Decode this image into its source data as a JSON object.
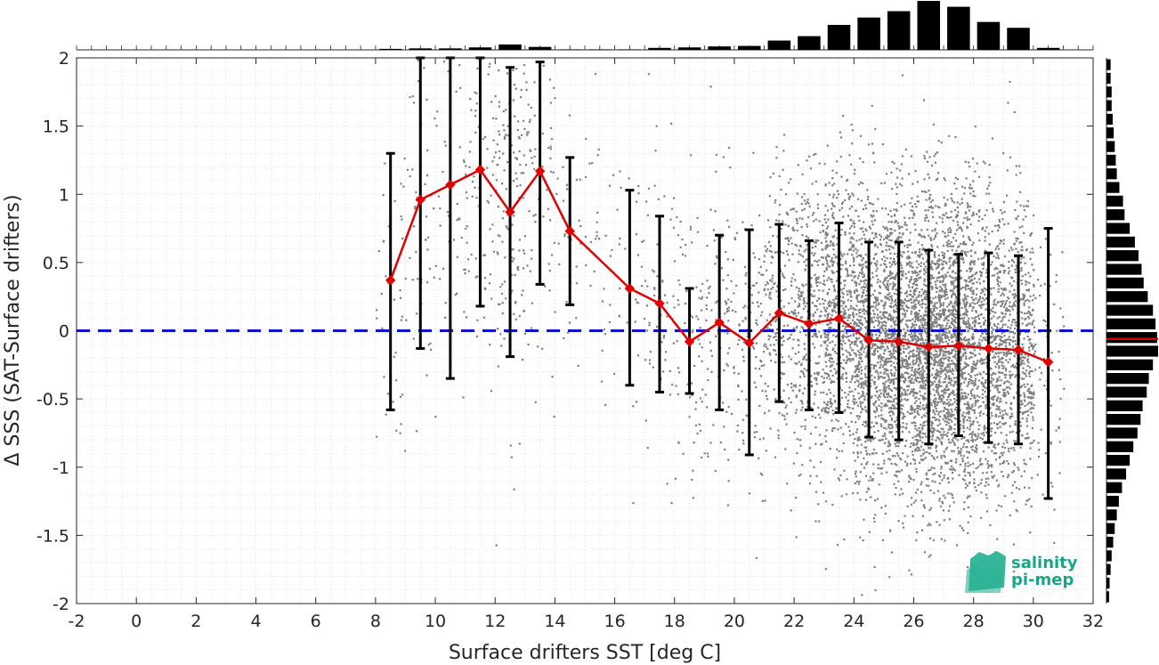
{
  "chart_data": {
    "type": "scatter",
    "xlabel": "Surface drifters SST [deg C]",
    "ylabel": "Δ SSS (SAT-Surface drifters)",
    "xlim": [
      -2,
      32
    ],
    "ylim": [
      -2,
      2
    ],
    "x_ticks": [
      "-2",
      "0",
      "2",
      "4",
      "6",
      "8",
      "10",
      "12",
      "14",
      "16",
      "18",
      "20",
      "22",
      "24",
      "26",
      "28",
      "30",
      "32"
    ],
    "y_ticks": [
      "2",
      "1.5",
      "1",
      "0.5",
      "0",
      "-0.5",
      "-1",
      "-1.5",
      "-2"
    ],
    "grid": true,
    "reference_line": {
      "y": 0,
      "style": "dashed",
      "color": "#1010d0"
    },
    "binned_mean": {
      "color": "#e00000",
      "x": [
        8.5,
        9.5,
        10.5,
        11.5,
        12.5,
        13.5,
        14.5,
        16.5,
        17.5,
        18.5,
        19.5,
        20.5,
        21.5,
        22.5,
        23.5,
        24.5,
        25.5,
        26.5,
        27.5,
        28.5,
        29.5,
        30.5
      ],
      "y": [
        0.37,
        0.96,
        1.07,
        1.18,
        0.87,
        1.17,
        0.73,
        0.31,
        0.2,
        -0.08,
        0.06,
        -0.09,
        0.13,
        0.05,
        0.09,
        -0.07,
        -0.08,
        -0.12,
        -0.11,
        -0.13,
        -0.14,
        -0.23
      ],
      "err_low": [
        -0.58,
        -0.13,
        -0.35,
        0.18,
        -0.19,
        0.34,
        0.19,
        -0.4,
        -0.45,
        -0.46,
        -0.58,
        -0.91,
        -0.52,
        -0.58,
        -0.6,
        -0.78,
        -0.8,
        -0.83,
        -0.77,
        -0.82,
        -0.83,
        -1.23
      ],
      "err_high": [
        1.3,
        2.0,
        2.0,
        2.0,
        1.93,
        1.97,
        1.27,
        1.03,
        0.84,
        0.31,
        0.7,
        0.74,
        0.78,
        0.66,
        0.79,
        0.65,
        0.65,
        0.59,
        0.56,
        0.57,
        0.55,
        0.75
      ]
    },
    "scatter_color": "#808080",
    "top_histogram": {
      "x": [
        8.5,
        9.5,
        10.5,
        11.5,
        12.5,
        13.5,
        14.5,
        15.5,
        16.5,
        17.5,
        18.5,
        19.5,
        20.5,
        21.5,
        22.5,
        23.5,
        24.5,
        25.5,
        26.5,
        27.5,
        28.5,
        29.5,
        30.5
      ],
      "counts": [
        0.02,
        0.03,
        0.03,
        0.05,
        0.11,
        0.06,
        0.01,
        0.01,
        0.01,
        0.04,
        0.05,
        0.07,
        0.08,
        0.19,
        0.28,
        0.51,
        0.66,
        0.79,
        1.0,
        0.88,
        0.57,
        0.45,
        0.04
      ]
    },
    "right_histogram": {
      "y": [
        1.95,
        1.85,
        1.75,
        1.65,
        1.55,
        1.45,
        1.35,
        1.25,
        1.15,
        1.05,
        0.95,
        0.85,
        0.75,
        0.65,
        0.55,
        0.45,
        0.35,
        0.25,
        0.15,
        0.05,
        -0.05,
        -0.15,
        -0.25,
        -0.35,
        -0.45,
        -0.55,
        -0.65,
        -0.75,
        -0.85,
        -0.95,
        -1.05,
        -1.15,
        -1.25,
        -1.35,
        -1.45,
        -1.55,
        -1.65,
        -1.75,
        -1.85,
        -1.95
      ],
      "counts": [
        0.08,
        0.08,
        0.1,
        0.1,
        0.12,
        0.14,
        0.16,
        0.18,
        0.2,
        0.25,
        0.32,
        0.35,
        0.45,
        0.55,
        0.62,
        0.68,
        0.72,
        0.8,
        0.9,
        0.95,
        0.98,
        1.0,
        0.9,
        0.82,
        0.78,
        0.7,
        0.66,
        0.6,
        0.52,
        0.45,
        0.38,
        0.3,
        0.24,
        0.2,
        0.16,
        0.13,
        0.1,
        0.08,
        0.06,
        0.05
      ]
    },
    "right_histogram_mean_line": {
      "y": -0.06,
      "color": "#e00000"
    }
  },
  "logo": {
    "line1": "salinity",
    "line2": "pi-mep",
    "text_color": "#1aa58a",
    "icon_color": "#2bb396"
  }
}
